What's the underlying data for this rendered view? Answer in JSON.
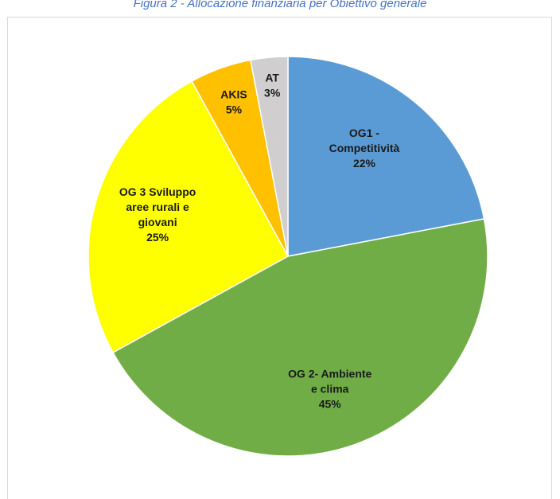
{
  "caption": "Figura 2 - Allocazione finanziaria per Obiettivo generale",
  "chart_data": {
    "type": "pie",
    "title": "",
    "slices": [
      {
        "name": "OG1 - Competitività",
        "label_lines": [
          "OG1 -",
          "Competitività"
        ],
        "value": 22,
        "value_label": "22%",
        "color": "#5b9bd5"
      },
      {
        "name": "OG 2- Ambiente e clima",
        "label_lines": [
          "OG 2- Ambiente",
          "e clima"
        ],
        "value": 45,
        "value_label": "45%",
        "color": "#70ad47"
      },
      {
        "name": "OG 3 Sviluppo aree rurali e giovani",
        "label_lines": [
          "OG 3 Sviluppo",
          "aree rurali e",
          "giovani"
        ],
        "value": 25,
        "value_label": "25%",
        "color": "#ffff00"
      },
      {
        "name": "AKIS",
        "label_lines": [
          "AKIS"
        ],
        "value": 5,
        "value_label": "5%",
        "color": "#ffc000"
      },
      {
        "name": "AT",
        "label_lines": [
          "AT"
        ],
        "value": 3,
        "value_label": "3%",
        "color": "#d0cece"
      }
    ],
    "start_angle_deg": 0,
    "direction": "clockwise"
  }
}
